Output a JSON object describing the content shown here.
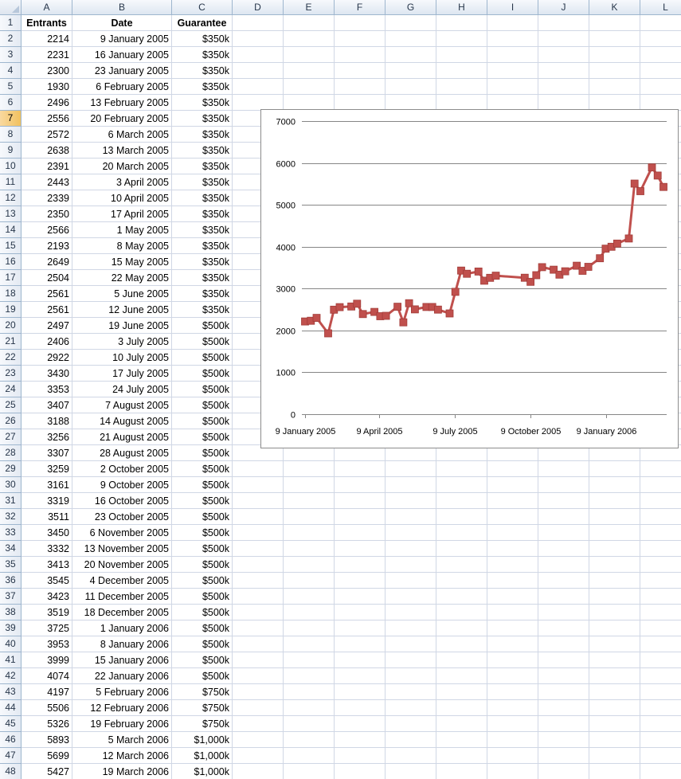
{
  "sheet": {
    "columns": [
      "A",
      "B",
      "C",
      "D",
      "E",
      "F",
      "G",
      "H",
      "I",
      "J",
      "K",
      "L"
    ],
    "active_row": 7,
    "headers": {
      "entrants": "Entrants",
      "date": "Date",
      "guarantee": "Guarantee"
    },
    "rows": [
      {
        "row": "2",
        "entrants": "2214",
        "date": "9 January 2005",
        "guarantee": "$350k"
      },
      {
        "row": "3",
        "entrants": "2231",
        "date": "16 January 2005",
        "guarantee": "$350k"
      },
      {
        "row": "4",
        "entrants": "2300",
        "date": "23 January 2005",
        "guarantee": "$350k"
      },
      {
        "row": "5",
        "entrants": "1930",
        "date": "6 February 2005",
        "guarantee": "$350k"
      },
      {
        "row": "6",
        "entrants": "2496",
        "date": "13 February 2005",
        "guarantee": "$350k"
      },
      {
        "row": "7",
        "entrants": "2556",
        "date": "20 February 2005",
        "guarantee": "$350k"
      },
      {
        "row": "8",
        "entrants": "2572",
        "date": "6 March 2005",
        "guarantee": "$350k"
      },
      {
        "row": "9",
        "entrants": "2638",
        "date": "13 March 2005",
        "guarantee": "$350k"
      },
      {
        "row": "10",
        "entrants": "2391",
        "date": "20 March 2005",
        "guarantee": "$350k"
      },
      {
        "row": "11",
        "entrants": "2443",
        "date": "3 April 2005",
        "guarantee": "$350k"
      },
      {
        "row": "12",
        "entrants": "2339",
        "date": "10 April 2005",
        "guarantee": "$350k"
      },
      {
        "row": "13",
        "entrants": "2350",
        "date": "17 April 2005",
        "guarantee": "$350k"
      },
      {
        "row": "14",
        "entrants": "2566",
        "date": "1 May 2005",
        "guarantee": "$350k"
      },
      {
        "row": "15",
        "entrants": "2193",
        "date": "8 May 2005",
        "guarantee": "$350k"
      },
      {
        "row": "16",
        "entrants": "2649",
        "date": "15 May 2005",
        "guarantee": "$350k"
      },
      {
        "row": "17",
        "entrants": "2504",
        "date": "22 May 2005",
        "guarantee": "$350k"
      },
      {
        "row": "18",
        "entrants": "2561",
        "date": "5 June 2005",
        "guarantee": "$350k"
      },
      {
        "row": "19",
        "entrants": "2561",
        "date": "12 June 2005",
        "guarantee": "$350k"
      },
      {
        "row": "20",
        "entrants": "2497",
        "date": "19 June 2005",
        "guarantee": "$500k"
      },
      {
        "row": "21",
        "entrants": "2406",
        "date": "3 July 2005",
        "guarantee": "$500k"
      },
      {
        "row": "22",
        "entrants": "2922",
        "date": "10 July 2005",
        "guarantee": "$500k"
      },
      {
        "row": "23",
        "entrants": "3430",
        "date": "17 July 2005",
        "guarantee": "$500k"
      },
      {
        "row": "24",
        "entrants": "3353",
        "date": "24 July 2005",
        "guarantee": "$500k"
      },
      {
        "row": "25",
        "entrants": "3407",
        "date": "7 August 2005",
        "guarantee": "$500k"
      },
      {
        "row": "26",
        "entrants": "3188",
        "date": "14 August 2005",
        "guarantee": "$500k"
      },
      {
        "row": "27",
        "entrants": "3256",
        "date": "21 August 2005",
        "guarantee": "$500k"
      },
      {
        "row": "28",
        "entrants": "3307",
        "date": "28 August 2005",
        "guarantee": "$500k"
      },
      {
        "row": "29",
        "entrants": "3259",
        "date": "2 October 2005",
        "guarantee": "$500k"
      },
      {
        "row": "30",
        "entrants": "3161",
        "date": "9 October 2005",
        "guarantee": "$500k"
      },
      {
        "row": "31",
        "entrants": "3319",
        "date": "16 October 2005",
        "guarantee": "$500k"
      },
      {
        "row": "32",
        "entrants": "3511",
        "date": "23 October 2005",
        "guarantee": "$500k"
      },
      {
        "row": "33",
        "entrants": "3450",
        "date": "6 November 2005",
        "guarantee": "$500k"
      },
      {
        "row": "34",
        "entrants": "3332",
        "date": "13 November 2005",
        "guarantee": "$500k"
      },
      {
        "row": "35",
        "entrants": "3413",
        "date": "20 November 2005",
        "guarantee": "$500k"
      },
      {
        "row": "36",
        "entrants": "3545",
        "date": "4 December 2005",
        "guarantee": "$500k"
      },
      {
        "row": "37",
        "entrants": "3423",
        "date": "11 December 2005",
        "guarantee": "$500k"
      },
      {
        "row": "38",
        "entrants": "3519",
        "date": "18 December 2005",
        "guarantee": "$500k"
      },
      {
        "row": "39",
        "entrants": "3725",
        "date": "1 January 2006",
        "guarantee": "$500k"
      },
      {
        "row": "40",
        "entrants": "3953",
        "date": "8 January 2006",
        "guarantee": "$500k"
      },
      {
        "row": "41",
        "entrants": "3999",
        "date": "15 January 2006",
        "guarantee": "$500k"
      },
      {
        "row": "42",
        "entrants": "4074",
        "date": "22 January 2006",
        "guarantee": "$500k"
      },
      {
        "row": "43",
        "entrants": "4197",
        "date": "5 February 2006",
        "guarantee": "$750k"
      },
      {
        "row": "44",
        "entrants": "5506",
        "date": "12 February 2006",
        "guarantee": "$750k"
      },
      {
        "row": "45",
        "entrants": "5326",
        "date": "19 February 2006",
        "guarantee": "$750k"
      },
      {
        "row": "46",
        "entrants": "5893",
        "date": "5 March 2006",
        "guarantee": "$1,000k"
      },
      {
        "row": "47",
        "entrants": "5699",
        "date": "12 March 2006",
        "guarantee": "$1,000k"
      },
      {
        "row": "48",
        "entrants": "5427",
        "date": "19 March 2006",
        "guarantee": "$1,000k"
      }
    ]
  },
  "chart_data": {
    "type": "line",
    "title": "",
    "xlabel": "",
    "ylabel": "",
    "ylim": [
      0,
      7000
    ],
    "yticks": [
      "0",
      "1000",
      "2000",
      "3000",
      "4000",
      "5000",
      "6000",
      "7000"
    ],
    "xticks": [
      {
        "date": "2005-01-09",
        "label": "9 January 2005"
      },
      {
        "date": "2005-04-09",
        "label": "9 April 2005"
      },
      {
        "date": "2005-07-09",
        "label": "9 July 2005"
      },
      {
        "date": "2005-10-09",
        "label": "9 October 2005"
      },
      {
        "date": "2006-01-09",
        "label": "9 January 2006"
      }
    ],
    "grid": true,
    "legend": "none",
    "color": "#c0504d",
    "marker": "square",
    "series": [
      {
        "x": [
          "2005-01-09",
          "2005-01-16",
          "2005-01-23",
          "2005-02-06",
          "2005-02-13",
          "2005-02-20",
          "2005-03-06",
          "2005-03-13",
          "2005-03-20",
          "2005-04-03",
          "2005-04-10",
          "2005-04-17",
          "2005-05-01",
          "2005-05-08",
          "2005-05-15",
          "2005-05-22",
          "2005-06-05",
          "2005-06-12",
          "2005-06-19",
          "2005-07-03",
          "2005-07-10",
          "2005-07-17",
          "2005-07-24",
          "2005-08-07",
          "2005-08-14",
          "2005-08-21",
          "2005-08-28",
          "2005-10-02",
          "2005-10-09",
          "2005-10-16",
          "2005-10-23",
          "2005-11-06",
          "2005-11-13",
          "2005-11-20",
          "2005-12-04",
          "2005-12-11",
          "2005-12-18",
          "2006-01-01",
          "2006-01-08",
          "2006-01-15",
          "2006-01-22",
          "2006-02-05",
          "2006-02-12",
          "2006-02-19",
          "2006-03-05",
          "2006-03-12",
          "2006-03-19"
        ],
        "values": [
          2214,
          2231,
          2300,
          1930,
          2496,
          2556,
          2572,
          2638,
          2391,
          2443,
          2339,
          2350,
          2566,
          2193,
          2649,
          2504,
          2561,
          2561,
          2497,
          2406,
          2922,
          3430,
          3353,
          3407,
          3188,
          3256,
          3307,
          3259,
          3161,
          3319,
          3511,
          3450,
          3332,
          3413,
          3545,
          3423,
          3519,
          3725,
          3953,
          3999,
          4074,
          4197,
          5506,
          5326,
          5893,
          5699,
          5427
        ]
      }
    ]
  }
}
